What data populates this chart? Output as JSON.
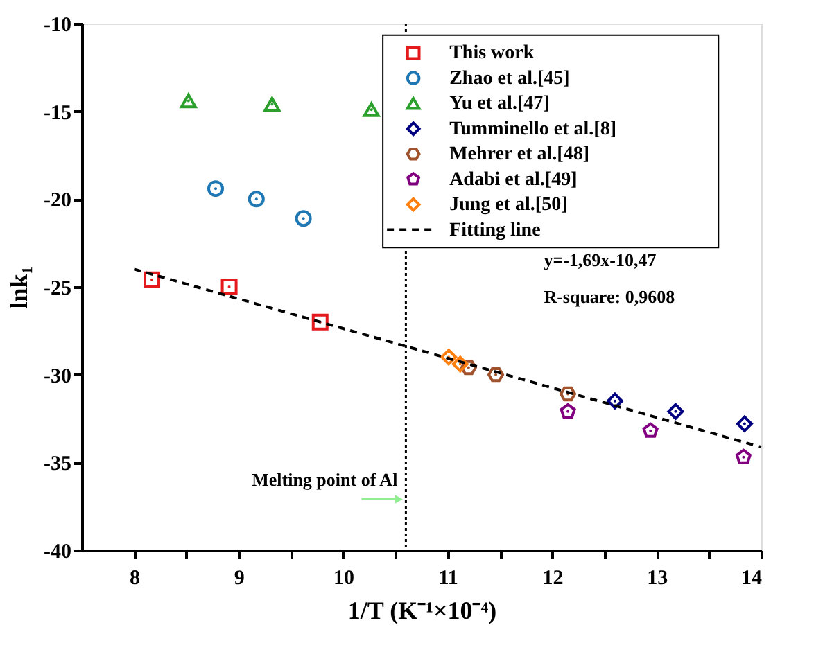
{
  "chart_data": {
    "type": "scatter",
    "xlabel": "1/T (K⁻¹×10⁻⁴)",
    "ylabel": "lnk₁",
    "xlim": [
      7.5,
      14
    ],
    "ylim": [
      -40,
      -10
    ],
    "xticks": [
      8,
      {
        "value": 8.5,
        "label": null
      },
      9,
      {
        "value": 9.5,
        "label": null
      },
      10,
      {
        "value": 10.5,
        "label": null
      },
      11,
      {
        "value": 11.5,
        "label": null
      },
      12,
      {
        "value": 12.5,
        "label": null
      },
      13,
      {
        "value": 13.5,
        "label": null
      },
      14
    ],
    "yticks": [
      -40,
      -35,
      -30,
      -25,
      -20,
      -15,
      -10
    ],
    "grid": false,
    "legend": "top right",
    "series": [
      {
        "name": "This work",
        "color": "#e41a1c",
        "marker": "square",
        "x": [
          8.17,
          8.91,
          9.78
        ],
        "values": [
          -24.6,
          -25.0,
          -27.0
        ]
      },
      {
        "name": "Zhao et al.[45]",
        "color": "#1f77b4",
        "marker": "circle",
        "x": [
          8.78,
          9.17,
          9.62
        ],
        "values": [
          -19.4,
          -20.0,
          -21.1
        ]
      },
      {
        "name": "Yu et al.[47]",
        "color": "#2ca02c",
        "marker": "triangle",
        "x": [
          8.52,
          9.32,
          10.27
        ],
        "values": [
          -14.4,
          -14.6,
          -14.9
        ]
      },
      {
        "name": "Tumminello et al.[8]",
        "color": "#000080",
        "marker": "diamond",
        "x": [
          12.6,
          13.18,
          13.84
        ],
        "values": [
          -31.5,
          -32.1,
          -32.8
        ]
      },
      {
        "name": "Mehrer et al.[48]",
        "color": "#a0522d",
        "x": [
          11.2,
          11.46,
          12.15
        ],
        "values": [
          -29.6,
          -30.0,
          -31.1
        ]
      },
      {
        "name": "Adabi et al.[49]",
        "color": "#800080",
        "x": [
          12.15,
          12.94,
          13.83
        ],
        "values": [
          -32.1,
          -33.2,
          -34.7
        ]
      },
      {
        "name": "Jung et al.[50]",
        "color": "#ff7f0e",
        "marker": "diamond",
        "x": [
          11.01,
          11.12
        ],
        "values": [
          -29.0,
          -29.4
        ]
      },
      {
        "name": "Fitting line",
        "type": "line",
        "color": "#000000",
        "line_style": "dashed",
        "marker": "none",
        "x": [
          8,
          14
        ],
        "values": [
          -23.99,
          -34.13
        ]
      }
    ],
    "ref_lines": [
      {
        "axis": "x",
        "value": 10.6,
        "color": "#000000",
        "line_style": "dotted"
      }
    ],
    "annotations": [
      {
        "text": "Melting point of Al",
        "x": 10.6,
        "y": -37.1
      },
      "y=-1,69x-10,47",
      "R-square: 0,9608"
    ]
  }
}
